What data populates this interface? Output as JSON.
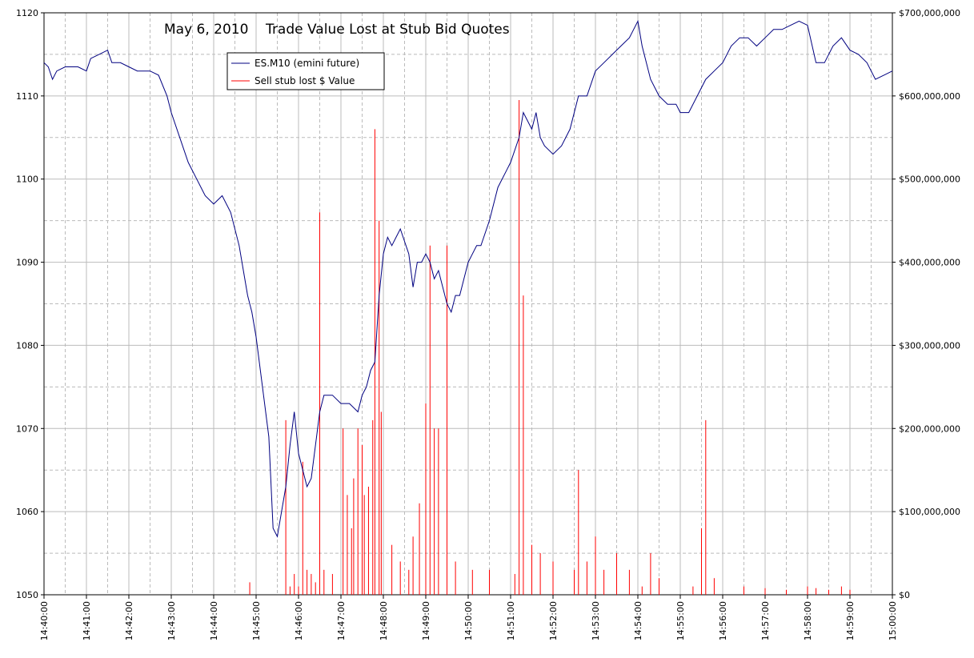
{
  "chart_data": {
    "type": "line",
    "title": "May 6, 2010    Trade Value Lost at Stub Bid Quotes",
    "x_tick_labels": [
      "14:40:00",
      "14:41:00",
      "14:42:00",
      "14:43:00",
      "14:44:00",
      "14:45:00",
      "14:46:00",
      "14:47:00",
      "14:48:00",
      "14:49:00",
      "14:50:00",
      "14:51:00",
      "14:52:00",
      "14:53:00",
      "14:54:00",
      "14:55:00",
      "14:56:00",
      "14:57:00",
      "14:58:00",
      "14:59:00",
      "15:00:00"
    ],
    "x_range_minutes": [
      0,
      20
    ],
    "y_left": {
      "ticks": [
        "1050",
        "1060",
        "1070",
        "1080",
        "1090",
        "1100",
        "1110",
        "1120"
      ],
      "range": [
        1050,
        1120
      ]
    },
    "y_right": {
      "ticks": [
        "$0",
        "$100,000,000",
        "$200,000,000",
        "$300,000,000",
        "$400,000,000",
        "$500,000,000",
        "$600,000,000",
        "$700,000,000"
      ],
      "range": [
        0,
        700000000
      ]
    },
    "grid": true,
    "legend_placement": "top-left",
    "colors": {
      "series_line": "#000080",
      "series_spikes": "#ff0000",
      "grid": "#bbbbbb"
    },
    "series": [
      {
        "name": "ES.M10 (emini future)",
        "axis": "left",
        "x_minutes": [
          0,
          0.1,
          0.2,
          0.3,
          0.5,
          0.8,
          1.0,
          1.1,
          1.3,
          1.5,
          1.6,
          1.8,
          2.0,
          2.2,
          2.5,
          2.7,
          2.9,
          3.0,
          3.2,
          3.4,
          3.6,
          3.8,
          4.0,
          4.2,
          4.4,
          4.6,
          4.7,
          4.8,
          4.9,
          5.0,
          5.1,
          5.2,
          5.3,
          5.4,
          5.5,
          5.6,
          5.7,
          5.8,
          5.9,
          6.0,
          6.1,
          6.2,
          6.3,
          6.4,
          6.5,
          6.6,
          6.8,
          7.0,
          7.2,
          7.4,
          7.5,
          7.6,
          7.7,
          7.8,
          7.9,
          8.0,
          8.1,
          8.2,
          8.3,
          8.4,
          8.6,
          8.7,
          8.8,
          8.9,
          9.0,
          9.1,
          9.2,
          9.3,
          9.4,
          9.5,
          9.6,
          9.7,
          9.8,
          9.9,
          10.0,
          10.1,
          10.2,
          10.3,
          10.5,
          10.7,
          10.9,
          11.0,
          11.2,
          11.3,
          11.5,
          11.6,
          11.7,
          11.8,
          12.0,
          12.2,
          12.4,
          12.6,
          12.8,
          13.0,
          13.2,
          13.4,
          13.6,
          13.8,
          14.0,
          14.1,
          14.3,
          14.5,
          14.7,
          14.9,
          15.0,
          15.2,
          15.4,
          15.6,
          15.8,
          16.0,
          16.2,
          16.4,
          16.6,
          16.8,
          17.0,
          17.2,
          17.4,
          17.6,
          17.8,
          18.0,
          18.2,
          18.4,
          18.6,
          18.8,
          19.0,
          19.2,
          19.4,
          19.6,
          19.8,
          20.0
        ],
        "values": [
          1114,
          1113.5,
          1112,
          1113,
          1113.5,
          1113.5,
          1113,
          1114.5,
          1115,
          1115.5,
          1114,
          1114,
          1113.5,
          1113,
          1113,
          1112.5,
          1110,
          1108,
          1105,
          1102,
          1100,
          1098,
          1097,
          1098,
          1096,
          1092,
          1089,
          1086,
          1084,
          1081,
          1077,
          1073,
          1069,
          1058,
          1057,
          1060,
          1063,
          1068,
          1072,
          1067,
          1065,
          1063,
          1064,
          1068,
          1072,
          1074,
          1074,
          1073,
          1073,
          1072,
          1074,
          1075,
          1077,
          1078,
          1086,
          1091,
          1093,
          1092,
          1093,
          1094,
          1091,
          1087,
          1090,
          1090,
          1091,
          1090,
          1088,
          1089,
          1087,
          1085,
          1084,
          1086,
          1086,
          1088,
          1090,
          1091,
          1092,
          1092,
          1095,
          1099,
          1101,
          1102,
          1105,
          1108,
          1106,
          1108,
          1105,
          1104,
          1103,
          1104,
          1106,
          1110,
          1110,
          1113,
          1114,
          1115,
          1116,
          1117,
          1119,
          1116,
          1112,
          1110,
          1109,
          1109,
          1108,
          1108,
          1110,
          1112,
          1113,
          1114,
          1116,
          1117,
          1117,
          1116,
          1117,
          1118,
          1118,
          1118.5,
          1119,
          1118.5,
          1114,
          1114,
          1116,
          1117,
          1115.5,
          1115,
          1114,
          1112,
          1112.5,
          1113
        ]
      },
      {
        "name": "Sell stub lost $ Value",
        "axis": "right",
        "spike_x_minutes": [
          4.85,
          5.7,
          5.8,
          5.9,
          6.0,
          6.1,
          6.2,
          6.3,
          6.4,
          6.5,
          6.6,
          6.8,
          7.05,
          7.15,
          7.25,
          7.3,
          7.4,
          7.5,
          7.55,
          7.65,
          7.75,
          7.8,
          7.9,
          7.95,
          8.2,
          8.4,
          8.6,
          8.7,
          8.85,
          9.0,
          9.1,
          9.2,
          9.3,
          9.5,
          9.7,
          10.1,
          10.5,
          11.1,
          11.2,
          11.3,
          11.5,
          11.7,
          12.0,
          12.5,
          12.6,
          12.8,
          13.0,
          13.2,
          13.5,
          13.8,
          14.1,
          14.3,
          14.5,
          15.3,
          15.5,
          15.6,
          15.8,
          16.5,
          17.0,
          17.5,
          18.0,
          18.2,
          18.5,
          18.8,
          19.0
        ],
        "spike_values": [
          15000000,
          210000000,
          10000000,
          25000000,
          10000000,
          160000000,
          30000000,
          25000000,
          15000000,
          460000000,
          30000000,
          25000000,
          200000000,
          120000000,
          80000000,
          140000000,
          200000000,
          180000000,
          120000000,
          130000000,
          210000000,
          560000000,
          450000000,
          220000000,
          60000000,
          40000000,
          30000000,
          70000000,
          110000000,
          230000000,
          420000000,
          200000000,
          200000000,
          420000000,
          40000000,
          30000000,
          30000000,
          25000000,
          595000000,
          360000000,
          60000000,
          50000000,
          40000000,
          30000000,
          150000000,
          40000000,
          70000000,
          30000000,
          50000000,
          30000000,
          10000000,
          50000000,
          20000000,
          10000000,
          80000000,
          210000000,
          20000000,
          10000000,
          8000000,
          6000000,
          10000000,
          8000000,
          6000000,
          10000000,
          6000000
        ]
      }
    ]
  }
}
